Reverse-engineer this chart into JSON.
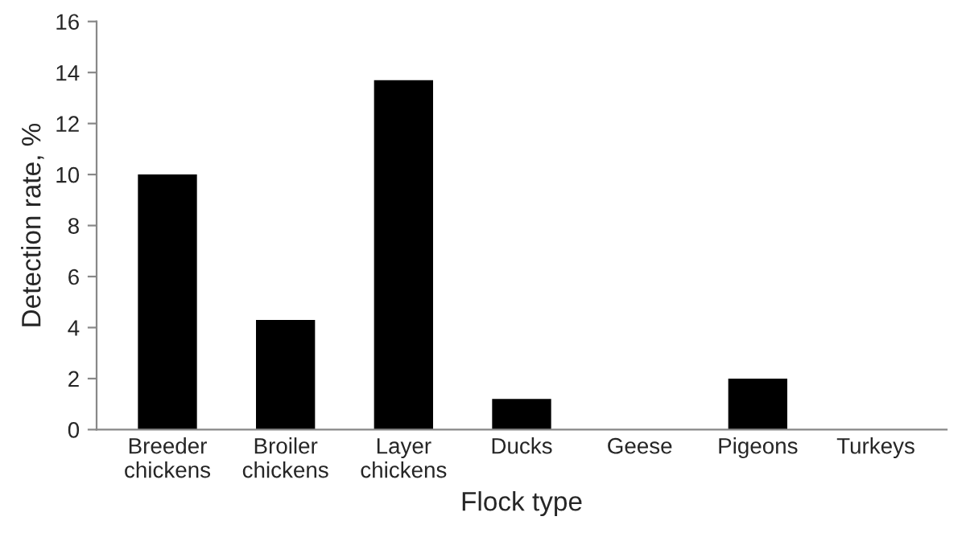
{
  "chart_data": {
    "type": "bar",
    "categories": [
      "Breeder chickens",
      "Broiler chickens",
      "Layer chickens",
      "Ducks",
      "Geese",
      "Pigeons",
      "Turkeys"
    ],
    "values": [
      10,
      4.3,
      13.7,
      1.2,
      0,
      2,
      0
    ],
    "color": "#000000",
    "xlabel": "Flock type",
    "ylabel": "Detection rate, %",
    "ylim": [
      0,
      16
    ],
    "yticks": [
      0,
      2,
      4,
      6,
      8,
      10,
      12,
      14,
      16
    ],
    "grid": false,
    "legend": false
  }
}
